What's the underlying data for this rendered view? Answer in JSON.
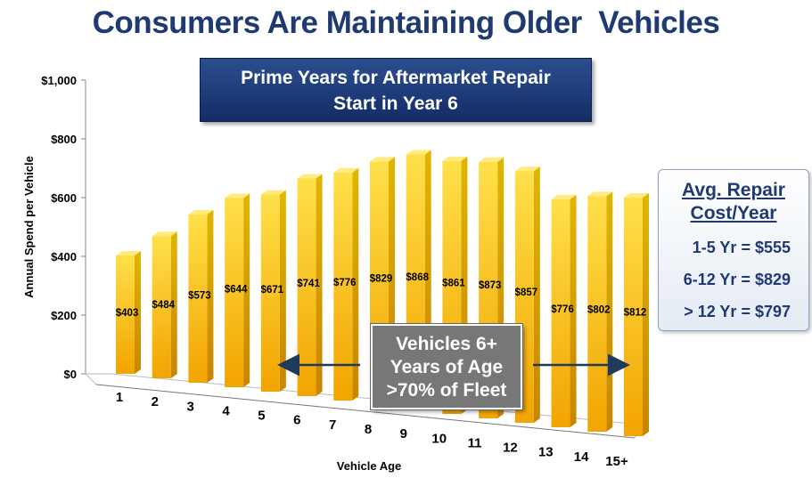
{
  "title": "Consumers Are Maintaining Older  Vehicles",
  "banner": {
    "line1": "Prime Years for Aftermarket Repair",
    "line2": "Start in Year 6"
  },
  "callout": {
    "line1": "Vehicles 6+",
    "line2": "Years of Age",
    "line3": ">70% of Fleet"
  },
  "summary": {
    "heading_line1": "Avg. Repair",
    "heading_line2": "Cost/Year",
    "lines": [
      "1-5 Yr = $555",
      "6-12 Yr = $829",
      "> 12 Yr = $797"
    ]
  },
  "colors": {
    "title": "#1f3a73",
    "bar_top": "#ffe04a",
    "bar_bottom": "#f2a400",
    "banner": "#1f3a73",
    "callout": "#777777"
  },
  "chart_data": {
    "type": "bar",
    "categories": [
      "1",
      "2",
      "3",
      "4",
      "5",
      "6",
      "7",
      "8",
      "9",
      "10",
      "11",
      "12",
      "13",
      "14",
      "15+"
    ],
    "values": [
      403,
      484,
      573,
      644,
      671,
      741,
      776,
      829,
      868,
      861,
      873,
      857,
      776,
      802,
      812
    ],
    "value_labels": [
      "$403",
      "$484",
      "$573",
      "$644",
      "$671",
      "$741",
      "$776",
      "$829",
      "$868",
      "$861",
      "$873",
      "$857",
      "$776",
      "$802",
      "$812"
    ],
    "xlabel": "Vehicle Age",
    "ylabel": "Annual Spend per Vehicle",
    "ylim": [
      0,
      1000
    ],
    "yticks": [
      0,
      200,
      400,
      600,
      800,
      1000
    ],
    "ytick_labels": [
      "$0",
      "$200",
      "$400",
      "$600",
      "$800",
      "$1,000"
    ],
    "grid": false,
    "legend": "none"
  }
}
